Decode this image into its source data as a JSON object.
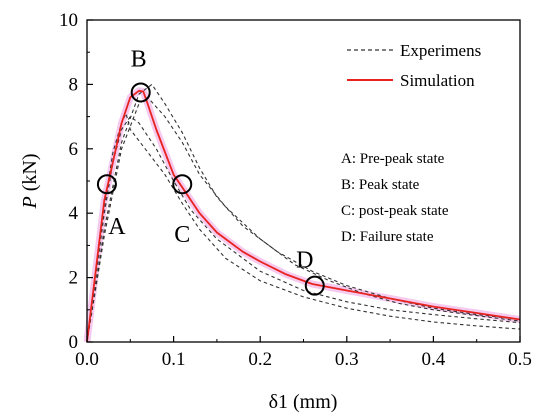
{
  "chart_data": {
    "type": "line",
    "xlabel": "δ1 (mm)",
    "ylabel_italic": "P",
    "ylabel_unit": " (kN)",
    "xlim": [
      0,
      0.5
    ],
    "ylim": [
      0,
      10
    ],
    "xticks": [
      "0.0",
      "0.1",
      "0.2",
      "0.3",
      "0.4",
      "0.5"
    ],
    "yticks": [
      "0",
      "2",
      "4",
      "6",
      "8",
      "10"
    ],
    "grid": false,
    "legend_placement": "top-right",
    "colors": {
      "experiment": "#333333",
      "simulation": "#e8231f",
      "band": "#f6c9ef"
    },
    "series": [
      {
        "name": "Experimens",
        "style": "dashed",
        "curves": [
          [
            [
              0,
              0
            ],
            [
              0.01,
              2.2
            ],
            [
              0.02,
              4.2
            ],
            [
              0.03,
              5.9
            ],
            [
              0.04,
              6.8
            ],
            [
              0.045,
              7.1
            ],
            [
              0.05,
              6.6
            ],
            [
              0.07,
              5.9
            ],
            [
              0.09,
              5.2
            ],
            [
              0.11,
              4.3
            ],
            [
              0.13,
              3.5
            ],
            [
              0.16,
              2.6
            ],
            [
              0.2,
              1.9
            ],
            [
              0.25,
              1.4
            ],
            [
              0.3,
              1.05
            ],
            [
              0.35,
              0.8
            ],
            [
              0.4,
              0.62
            ],
            [
              0.45,
              0.5
            ],
            [
              0.5,
              0.4
            ]
          ],
          [
            [
              0,
              0
            ],
            [
              0.01,
              2.0
            ],
            [
              0.02,
              4.0
            ],
            [
              0.03,
              5.6
            ],
            [
              0.04,
              6.6
            ],
            [
              0.05,
              7.0
            ],
            [
              0.06,
              6.8
            ],
            [
              0.08,
              6.0
            ],
            [
              0.1,
              5.0
            ],
            [
              0.12,
              4.1
            ],
            [
              0.15,
              3.2
            ],
            [
              0.2,
              2.2
            ],
            [
              0.25,
              1.6
            ],
            [
              0.3,
              1.25
            ],
            [
              0.35,
              1.0
            ],
            [
              0.4,
              0.85
            ],
            [
              0.45,
              0.72
            ],
            [
              0.5,
              0.6
            ]
          ],
          [
            [
              0,
              0
            ],
            [
              0.02,
              3.5
            ],
            [
              0.04,
              6.2
            ],
            [
              0.06,
              7.7
            ],
            [
              0.075,
              8.0
            ],
            [
              0.09,
              7.4
            ],
            [
              0.11,
              6.5
            ],
            [
              0.13,
              5.4
            ],
            [
              0.15,
              4.5
            ],
            [
              0.18,
              3.6
            ],
            [
              0.22,
              2.8
            ],
            [
              0.26,
              2.2
            ],
            [
              0.3,
              1.75
            ],
            [
              0.35,
              1.35
            ],
            [
              0.4,
              1.05
            ],
            [
              0.45,
              0.85
            ],
            [
              0.5,
              0.7
            ]
          ],
          [
            [
              0,
              0
            ],
            [
              0.02,
              3.3
            ],
            [
              0.04,
              6.0
            ],
            [
              0.06,
              7.4
            ],
            [
              0.07,
              7.6
            ],
            [
              0.09,
              7.0
            ],
            [
              0.11,
              6.2
            ],
            [
              0.13,
              5.2
            ],
            [
              0.16,
              4.2
            ],
            [
              0.2,
              3.2
            ],
            [
              0.24,
              2.4
            ],
            [
              0.28,
              1.9
            ],
            [
              0.32,
              1.5
            ],
            [
              0.36,
              1.2
            ],
            [
              0.4,
              1.0
            ],
            [
              0.45,
              0.82
            ],
            [
              0.5,
              0.65
            ]
          ]
        ]
      },
      {
        "name": "Simulation",
        "style": "solid",
        "points": [
          [
            0,
            0
          ],
          [
            0.01,
            2.2
          ],
          [
            0.02,
            4.4
          ],
          [
            0.025,
            5.0
          ],
          [
            0.03,
            5.6
          ],
          [
            0.04,
            6.8
          ],
          [
            0.05,
            7.6
          ],
          [
            0.06,
            7.8
          ],
          [
            0.065,
            7.78
          ],
          [
            0.07,
            7.4
          ],
          [
            0.08,
            6.6
          ],
          [
            0.09,
            5.9
          ],
          [
            0.1,
            5.2
          ],
          [
            0.11,
            4.8
          ],
          [
            0.12,
            4.4
          ],
          [
            0.13,
            4.0
          ],
          [
            0.15,
            3.4
          ],
          [
            0.18,
            2.8
          ],
          [
            0.2,
            2.5
          ],
          [
            0.23,
            2.1
          ],
          [
            0.26,
            1.8
          ],
          [
            0.3,
            1.6
          ],
          [
            0.35,
            1.35
          ],
          [
            0.4,
            1.1
          ],
          [
            0.45,
            0.9
          ],
          [
            0.5,
            0.7
          ]
        ]
      }
    ],
    "markers": [
      {
        "label": "A",
        "x": 0.023,
        "y": 4.9
      },
      {
        "label": "B",
        "x": 0.062,
        "y": 7.75
      },
      {
        "label": "C",
        "x": 0.11,
        "y": 4.9
      },
      {
        "label": "D",
        "x": 0.263,
        "y": 1.75
      }
    ],
    "annotations": [
      "A: Pre-peak state",
      "B: Peak state",
      "C: post-peak state",
      "D: Failure state"
    ]
  }
}
